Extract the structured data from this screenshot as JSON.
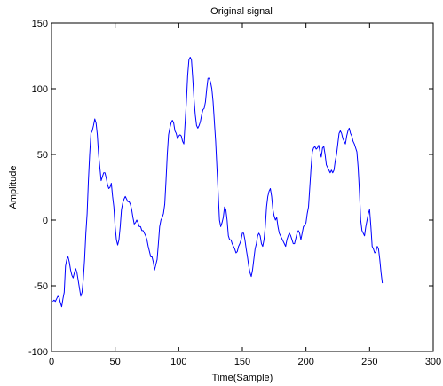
{
  "chart_data": {
    "type": "line",
    "title": "Original signal",
    "xlabel": "Time(Sample)",
    "ylabel": "Amplitude",
    "xlim": [
      0,
      300
    ],
    "ylim": [
      -100,
      150
    ],
    "xticks": [
      0,
      50,
      100,
      150,
      200,
      250,
      300
    ],
    "yticks": [
      -100,
      -50,
      0,
      50,
      100,
      150
    ],
    "xtick_labels": [
      "0",
      "50",
      "100",
      "150",
      "200",
      "250",
      "300"
    ],
    "ytick_labels": [
      "-100",
      "-50",
      "0",
      "50",
      "100",
      "150"
    ],
    "grid": false,
    "line_color": "#0000ff",
    "x_start": 1,
    "x_step": 1,
    "y": [
      -62,
      -61,
      -62,
      -60,
      -58,
      -59,
      -63,
      -66,
      -60,
      -55,
      -35,
      -30,
      -28,
      -32,
      -38,
      -42,
      -44,
      -40,
      -37,
      -40,
      -46,
      -52,
      -58,
      -55,
      -45,
      -30,
      -10,
      5,
      30,
      50,
      66,
      68,
      72,
      77,
      74,
      65,
      50,
      40,
      30,
      33,
      36,
      36,
      32,
      27,
      24,
      25,
      28,
      18,
      10,
      -5,
      -15,
      -19,
      -15,
      -5,
      8,
      13,
      16,
      18,
      16,
      14,
      14,
      12,
      8,
      2,
      -3,
      -2,
      0,
      -2,
      -5,
      -5,
      -8,
      -8,
      -10,
      -12,
      -15,
      -20,
      -24,
      -28,
      -28,
      -32,
      -38,
      -34,
      -30,
      -18,
      -5,
      0,
      2,
      5,
      12,
      30,
      50,
      65,
      70,
      74,
      76,
      74,
      68,
      66,
      62,
      64,
      65,
      64,
      60,
      58,
      74,
      90,
      110,
      122,
      124,
      122,
      108,
      92,
      80,
      72,
      70,
      72,
      75,
      80,
      84,
      85,
      90,
      100,
      108,
      108,
      105,
      100,
      90,
      75,
      60,
      40,
      20,
      0,
      -5,
      -2,
      2,
      10,
      8,
      0,
      -12,
      -15,
      -15,
      -18,
      -20,
      -22,
      -25,
      -24,
      -20,
      -18,
      -15,
      -10,
      -10,
      -15,
      -22,
      -28,
      -35,
      -40,
      -43,
      -38,
      -30,
      -22,
      -18,
      -12,
      -10,
      -12,
      -18,
      -20,
      -15,
      -5,
      10,
      18,
      22,
      24,
      18,
      8,
      3,
      0,
      2,
      -5,
      -10,
      -12,
      -14,
      -16,
      -18,
      -20,
      -15,
      -12,
      -10,
      -12,
      -15,
      -18,
      -18,
      -14,
      -10,
      -8,
      -10,
      -15,
      -10,
      -5,
      -4,
      -2,
      5,
      10,
      25,
      40,
      52,
      55,
      56,
      54,
      55,
      57,
      52,
      48,
      55,
      56,
      50,
      42,
      40,
      38,
      36,
      38,
      36,
      38,
      45,
      50,
      58,
      66,
      68,
      66,
      62,
      60,
      58,
      64,
      68,
      70,
      66,
      64,
      60,
      58,
      55,
      52,
      40,
      22,
      0,
      -8,
      -10,
      -12,
      -5,
      0,
      5,
      8,
      -5,
      -20,
      -22,
      -25,
      -24,
      -20,
      -22,
      -30,
      -40,
      -48
    ]
  }
}
